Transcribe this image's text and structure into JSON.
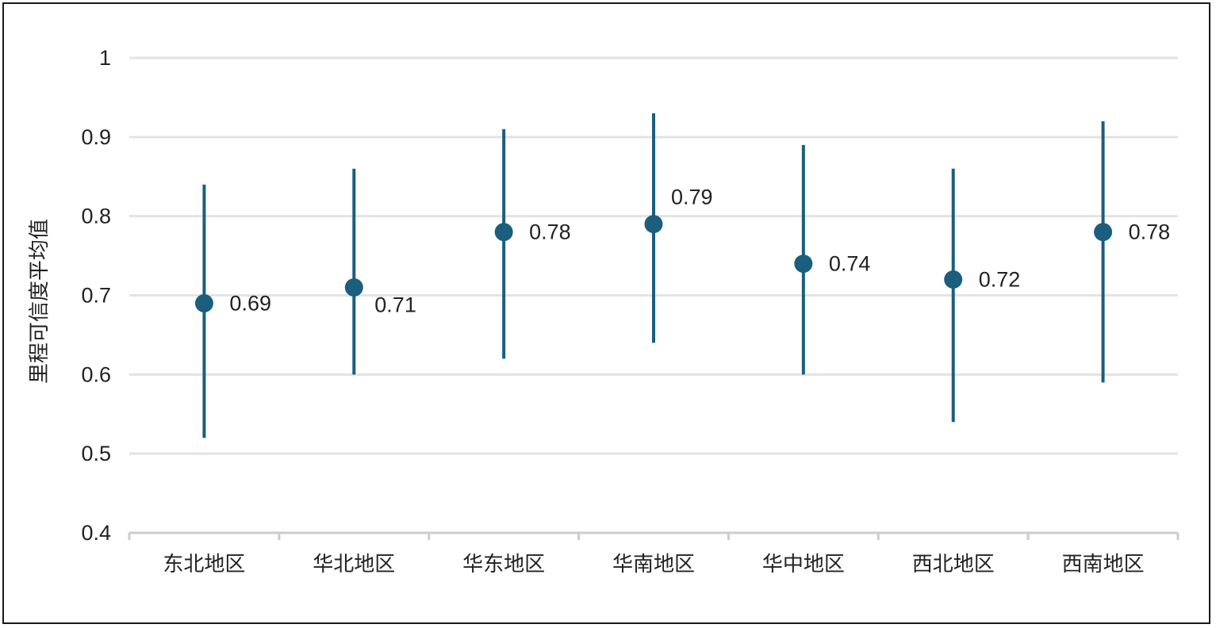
{
  "chart_data": {
    "type": "scatter",
    "subtype": "point-with-error-bars",
    "title": "",
    "xlabel": "",
    "ylabel": "里程可信度平均值",
    "ylim": [
      0.4,
      1
    ],
    "yticks": [
      "0.4",
      "0.5",
      "0.6",
      "0.7",
      "0.8",
      "0.9",
      "1"
    ],
    "grid": true,
    "legend": "none",
    "categories": [
      "东北地区",
      "华北地区",
      "华东地区",
      "华南地区",
      "华中地区",
      "西北地区",
      "西南地区"
    ],
    "series": [
      {
        "values": [
          0.69,
          0.71,
          0.78,
          0.79,
          0.74,
          0.72,
          0.78
        ],
        "lower": [
          0.52,
          0.6,
          0.62,
          0.64,
          0.6,
          0.54,
          0.59
        ],
        "upper": [
          0.84,
          0.86,
          0.91,
          0.93,
          0.89,
          0.86,
          0.92
        ],
        "data_labels": [
          "0.69",
          "0.71",
          "0.78",
          "0.79",
          "0.74",
          "0.72",
          "0.78"
        ],
        "color": "#1b5e7e"
      }
    ],
    "colors": {
      "point": "#1b5e7e",
      "grid": "#e3e3e3",
      "axis": "#cccccc",
      "text": "#222222"
    }
  }
}
